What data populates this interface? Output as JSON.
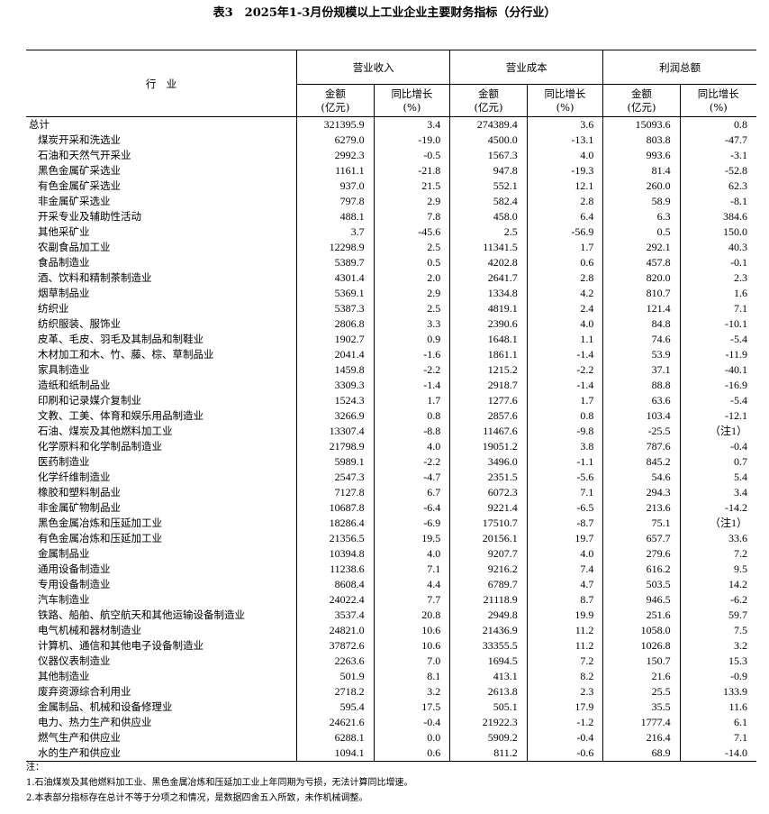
{
  "title": "表3　2025年1-3月份规模以上工业企业主要财务指标（分行业）",
  "header": {
    "industry": "行　业",
    "groups": [
      "营业收入",
      "营业成本",
      "利润总额"
    ],
    "amount": "金额",
    "amount_unit": "(亿元)",
    "growth": "同比增长",
    "growth_unit": "(%)"
  },
  "rows": [
    [
      "总计",
      "321395.9",
      "3.4",
      "274389.4",
      "3.6",
      "15093.6",
      "0.8"
    ],
    [
      "煤炭开采和洗选业",
      "6279.0",
      "-19.0",
      "4500.0",
      "-13.1",
      "803.8",
      "-47.7"
    ],
    [
      "石油和天然气开采业",
      "2992.3",
      "-0.5",
      "1567.3",
      "4.0",
      "993.6",
      "-3.1"
    ],
    [
      "黑色金属矿采选业",
      "1161.1",
      "-21.8",
      "947.8",
      "-19.3",
      "81.4",
      "-52.8"
    ],
    [
      "有色金属矿采选业",
      "937.0",
      "21.5",
      "552.1",
      "12.1",
      "260.0",
      "62.3"
    ],
    [
      "非金属矿采选业",
      "797.8",
      "2.9",
      "582.4",
      "2.8",
      "58.9",
      "-8.1"
    ],
    [
      "开采专业及辅助性活动",
      "488.1",
      "7.8",
      "458.0",
      "6.4",
      "6.3",
      "384.6"
    ],
    [
      "其他采矿业",
      "3.7",
      "-45.6",
      "2.5",
      "-56.9",
      "0.5",
      "150.0"
    ],
    [
      "农副食品加工业",
      "12298.9",
      "2.5",
      "11341.5",
      "1.7",
      "292.1",
      "40.3"
    ],
    [
      "食品制造业",
      "5389.7",
      "0.5",
      "4202.8",
      "0.6",
      "457.8",
      "-0.1"
    ],
    [
      "酒、饮料和精制茶制造业",
      "4301.4",
      "2.0",
      "2641.7",
      "2.8",
      "820.0",
      "2.3"
    ],
    [
      "烟草制品业",
      "5369.1",
      "2.9",
      "1334.8",
      "4.2",
      "810.7",
      "1.6"
    ],
    [
      "纺织业",
      "5387.3",
      "2.5",
      "4819.1",
      "2.4",
      "121.4",
      "7.1"
    ],
    [
      "纺织服装、服饰业",
      "2806.8",
      "3.3",
      "2390.6",
      "4.0",
      "84.8",
      "-10.1"
    ],
    [
      "皮革、毛皮、羽毛及其制品和制鞋业",
      "1902.7",
      "0.9",
      "1648.1",
      "1.1",
      "74.6",
      "-5.4"
    ],
    [
      "木材加工和木、竹、藤、棕、草制品业",
      "2041.4",
      "-1.6",
      "1861.1",
      "-1.4",
      "53.9",
      "-11.9"
    ],
    [
      "家具制造业",
      "1459.8",
      "-2.2",
      "1215.2",
      "-2.2",
      "37.1",
      "-40.1"
    ],
    [
      "造纸和纸制品业",
      "3309.3",
      "-1.4",
      "2918.7",
      "-1.4",
      "88.8",
      "-16.9"
    ],
    [
      "印刷和记录媒介复制业",
      "1524.3",
      "1.7",
      "1277.6",
      "1.7",
      "63.6",
      "-5.4"
    ],
    [
      "文教、工美、体育和娱乐用品制造业",
      "3266.9",
      "0.8",
      "2857.6",
      "0.8",
      "103.4",
      "-12.1"
    ],
    [
      "石油、煤炭及其他燃料加工业",
      "13307.4",
      "-8.8",
      "11467.6",
      "-9.8",
      "-25.5",
      "（注1）"
    ],
    [
      "化学原料和化学制品制造业",
      "21798.9",
      "4.0",
      "19051.2",
      "3.8",
      "787.6",
      "-0.4"
    ],
    [
      "医药制造业",
      "5989.1",
      "-2.2",
      "3496.0",
      "-1.1",
      "845.2",
      "0.7"
    ],
    [
      "化学纤维制造业",
      "2547.3",
      "-4.7",
      "2351.5",
      "-5.6",
      "54.6",
      "5.4"
    ],
    [
      "橡胶和塑料制品业",
      "7127.8",
      "6.7",
      "6072.3",
      "7.1",
      "294.3",
      "3.4"
    ],
    [
      "非金属矿物制品业",
      "10687.8",
      "-6.4",
      "9221.4",
      "-6.5",
      "213.6",
      "-14.2"
    ],
    [
      "黑色金属冶炼和压延加工业",
      "18286.4",
      "-6.9",
      "17510.7",
      "-8.7",
      "75.1",
      "（注1）"
    ],
    [
      "有色金属冶炼和压延加工业",
      "21356.5",
      "19.5",
      "20156.1",
      "19.7",
      "657.7",
      "33.6"
    ],
    [
      "金属制品业",
      "10394.8",
      "4.0",
      "9207.7",
      "4.0",
      "279.6",
      "7.2"
    ],
    [
      "通用设备制造业",
      "11238.6",
      "7.1",
      "9216.2",
      "7.4",
      "616.2",
      "9.5"
    ],
    [
      "专用设备制造业",
      "8608.4",
      "4.4",
      "6789.7",
      "4.7",
      "503.5",
      "14.2"
    ],
    [
      "汽车制造业",
      "24022.4",
      "7.7",
      "21118.9",
      "8.7",
      "946.5",
      "-6.2"
    ],
    [
      "铁路、船舶、航空航天和其他运输设备制造业",
      "3537.4",
      "20.8",
      "2949.8",
      "19.9",
      "251.6",
      "59.7"
    ],
    [
      "电气机械和器材制造业",
      "24821.0",
      "10.6",
      "21436.9",
      "11.2",
      "1058.0",
      "7.5"
    ],
    [
      "计算机、通信和其他电子设备制造业",
      "37872.6",
      "10.6",
      "33355.5",
      "11.2",
      "1026.8",
      "3.2"
    ],
    [
      "仪器仪表制造业",
      "2263.6",
      "7.0",
      "1694.5",
      "7.2",
      "150.7",
      "15.3"
    ],
    [
      "其他制造业",
      "501.9",
      "8.1",
      "413.1",
      "8.2",
      "21.6",
      "-0.9"
    ],
    [
      "废弃资源综合利用业",
      "2718.2",
      "3.2",
      "2613.8",
      "2.3",
      "25.5",
      "133.9"
    ],
    [
      "金属制品、机械和设备修理业",
      "595.4",
      "17.5",
      "505.1",
      "17.9",
      "35.5",
      "11.6"
    ],
    [
      "电力、热力生产和供应业",
      "24621.6",
      "-0.4",
      "21922.3",
      "-1.2",
      "1777.4",
      "6.1"
    ],
    [
      "燃气生产和供应业",
      "6288.1",
      "0.0",
      "5909.2",
      "-0.4",
      "216.4",
      "7.1"
    ],
    [
      "水的生产和供应业",
      "1094.1",
      "0.6",
      "811.2",
      "-0.6",
      "68.9",
      "-14.0"
    ]
  ],
  "notes": {
    "heading": "注：",
    "items": [
      "1.石油煤炭及其他燃料加工业、黑色金属冶炼和压延加工业上年同期为亏损，无法计算同比增速。",
      "2.本表部分指标存在总计不等于分项之和情况，是数据四舍五入所致，未作机械调整。"
    ]
  }
}
